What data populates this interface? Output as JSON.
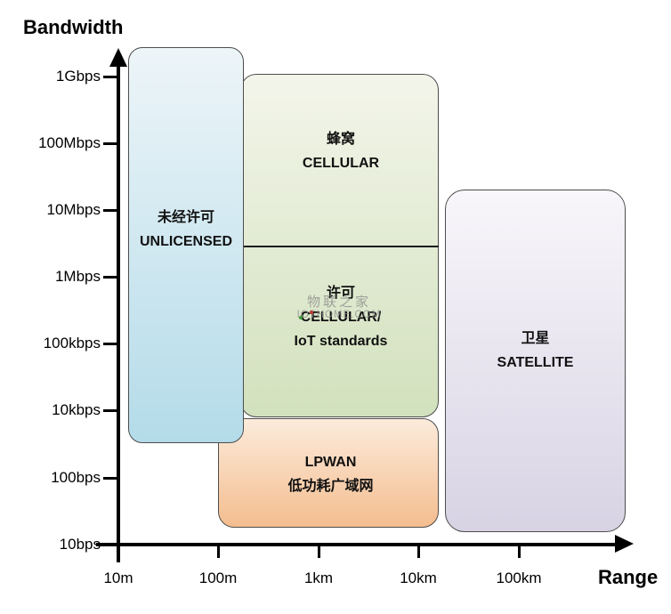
{
  "axes": {
    "y": {
      "title": "Bandwidth",
      "ticks": [
        "1Gbps",
        "100Mbps",
        "10Mbps",
        "1Mbps",
        "100kbps",
        "10kbps",
        "100bps",
        "10bps"
      ]
    },
    "x": {
      "title": "Range",
      "ticks": [
        "10m",
        "100m",
        "1km",
        "10km",
        "100km"
      ]
    }
  },
  "regions": {
    "unlicensed": {
      "line1": "未经许可",
      "line2": "UNLICENSED",
      "fill_top": "#edf5f8",
      "fill_bottom": "#b4dbe9",
      "approx_range": "~10m–200m",
      "approx_bandwidth": "~1kbps–1Gbps+"
    },
    "cellular": {
      "line1": "蜂窝",
      "line2": "CELLULAR",
      "fill_top": "#f3f5ea",
      "fill_bottom": "#d2e1bd",
      "approx_range": "~200m–15km",
      "approx_bandwidth": "~3Mbps–1Gbps"
    },
    "licensed_cellular_iot": {
      "line1": "许可",
      "line2": "CELLULAR/",
      "line3": "IoT standards",
      "fill_top": "#f3f5ea",
      "fill_bottom": "#d2e1bd",
      "approx_range": "~200m–15km",
      "approx_bandwidth": "~10kbps–3Mbps"
    },
    "lpwan": {
      "line1": "LPWAN",
      "line2": "低功耗广域网",
      "fill_top": "#fcebdb",
      "fill_bottom": "#f4bd8f",
      "approx_range": "~100m–15km",
      "approx_bandwidth": "~20bps–10kbps"
    },
    "satellite": {
      "line1": "卫星",
      "line2": "SATELLITE",
      "fill_top": "#f8f6fa",
      "fill_bottom": "#d8d3e4",
      "approx_range": "~20km–1000km+",
      "approx_bandwidth": "~20bps–20Mbps"
    }
  },
  "watermark": {
    "line1": "物联之家",
    "line2": "IOTHOME.COM"
  },
  "colors": {
    "axis": "#000000",
    "region_border": "#4d4d4d",
    "watermark_gray": "#8f8f8f"
  }
}
